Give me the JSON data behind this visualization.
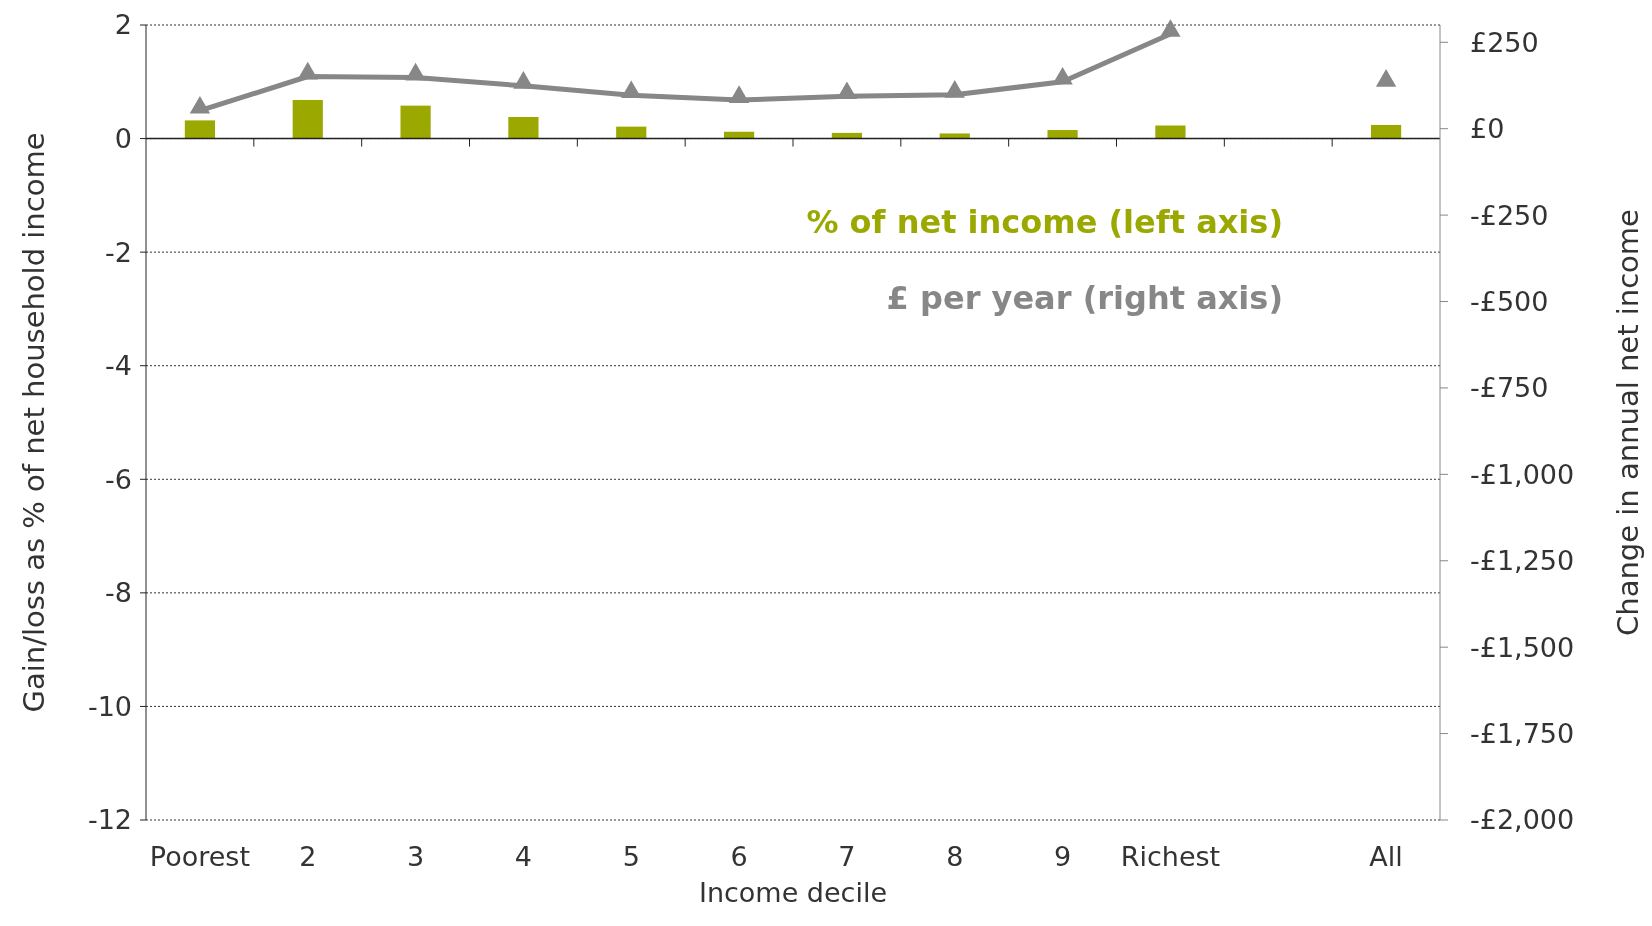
{
  "chart_data": {
    "type": "bar",
    "xlabel": "Income decile",
    "ylabel": "Gain/loss as % of net household income",
    "y2label": "Change in annual net income",
    "categories": [
      "Poorest",
      "2",
      "3",
      "4",
      "5",
      "6",
      "7",
      "8",
      "9",
      "Richest",
      null,
      "All"
    ],
    "series": [
      {
        "name": "% of net income (left axis)",
        "color": "#9aa800",
        "values": [
          0.32,
          0.68,
          0.58,
          0.38,
          0.21,
          0.12,
          0.1,
          0.09,
          0.15,
          0.23,
          null,
          0.24
        ]
      },
      {
        "name": "£ per year (right axis)",
        "type": "line",
        "axis": "y2",
        "color": "#878787",
        "marker": "triangle",
        "values": [
          52,
          151,
          148,
          124,
          97,
          83,
          94,
          98,
          136,
          274,
          null,
          130
        ]
      }
    ],
    "ylim": [
      -12,
      2
    ],
    "yticks": [
      -12,
      -10,
      -8,
      -6,
      -4,
      -2,
      0,
      2
    ],
    "y2lim": [
      -2000,
      300
    ],
    "y2ticks": [
      {
        "value": -2000,
        "label": "-£2,000"
      },
      {
        "value": -1750,
        "label": "-£1,750"
      },
      {
        "value": -1500,
        "label": "-£1,500"
      },
      {
        "value": -1250,
        "label": "-£1,250"
      },
      {
        "value": -1000,
        "label": "-£1,000"
      },
      {
        "value": -750,
        "label": "-£750"
      },
      {
        "value": -500,
        "label": "-£500"
      },
      {
        "value": -250,
        "label": "-£250"
      },
      {
        "value": 0,
        "label": "£0"
      },
      {
        "value": 250,
        "label": "£250"
      }
    ],
    "grid": "y",
    "legend": "top right"
  }
}
